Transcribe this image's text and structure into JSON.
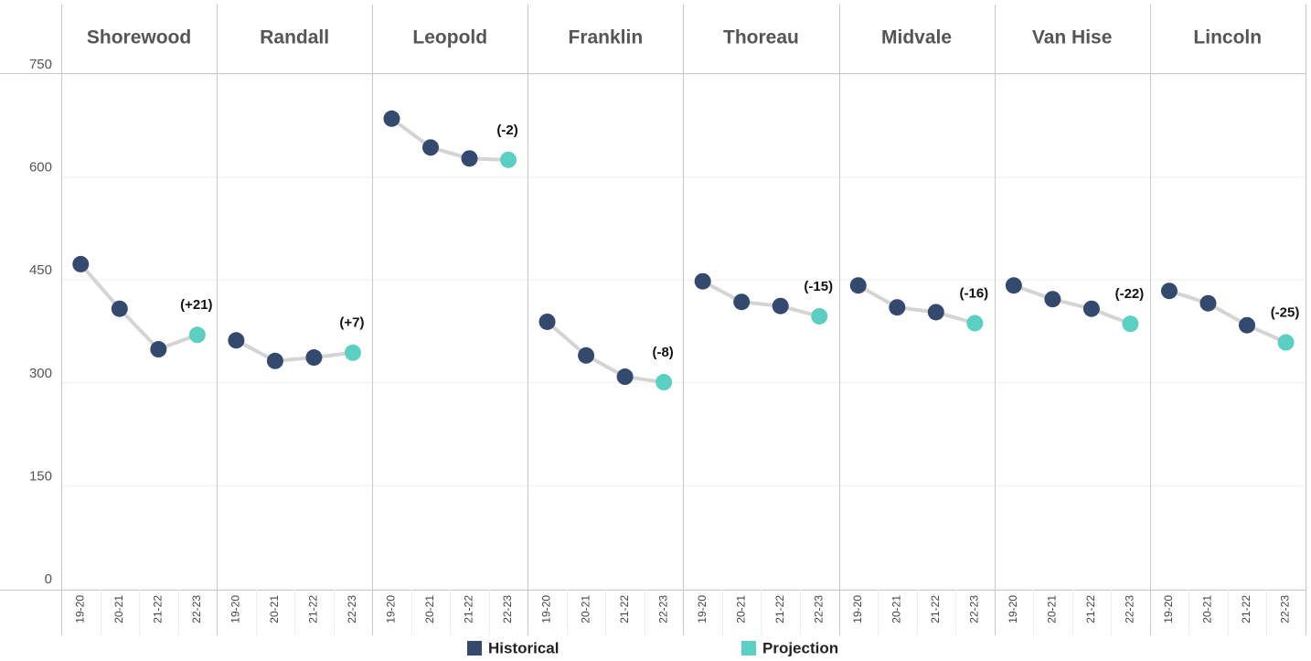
{
  "chart_data": {
    "type": "line",
    "panels": [
      "Shorewood",
      "Randall",
      "Leopold",
      "Franklin",
      "Thoreau",
      "Midvale",
      "Van Hise",
      "Lincoln"
    ],
    "categories": [
      "19-20",
      "20-21",
      "21-22",
      "22-23"
    ],
    "series": [
      {
        "name": "Historical",
        "color": "#34496e",
        "values": [
          [
            473,
            408,
            349,
            null
          ],
          [
            362,
            332,
            337,
            null
          ],
          [
            685,
            643,
            627,
            null
          ],
          [
            389,
            340,
            309,
            null
          ],
          [
            448,
            418,
            412,
            null
          ],
          [
            442,
            410,
            403,
            null
          ],
          [
            442,
            422,
            408,
            null
          ],
          [
            434,
            416,
            384,
            null
          ]
        ]
      },
      {
        "name": "Projection",
        "color": "#5ccfc3",
        "values": [
          [
            null,
            null,
            null,
            370
          ],
          [
            null,
            null,
            null,
            344
          ],
          [
            null,
            null,
            null,
            625
          ],
          [
            null,
            null,
            null,
            301
          ],
          [
            null,
            null,
            null,
            397
          ],
          [
            null,
            null,
            null,
            387
          ],
          [
            null,
            null,
            null,
            386
          ],
          [
            null,
            null,
            null,
            359
          ]
        ]
      }
    ],
    "annotations": [
      "(+21)",
      "(+7)",
      "(-2)",
      "(-8)",
      "(-15)",
      "(-16)",
      "(-22)",
      "(-25)"
    ],
    "line_color": "#d4d4d4",
    "ylim": [
      0,
      750
    ],
    "yticks": [
      0,
      150,
      300,
      450,
      600,
      750
    ],
    "grid": true
  }
}
